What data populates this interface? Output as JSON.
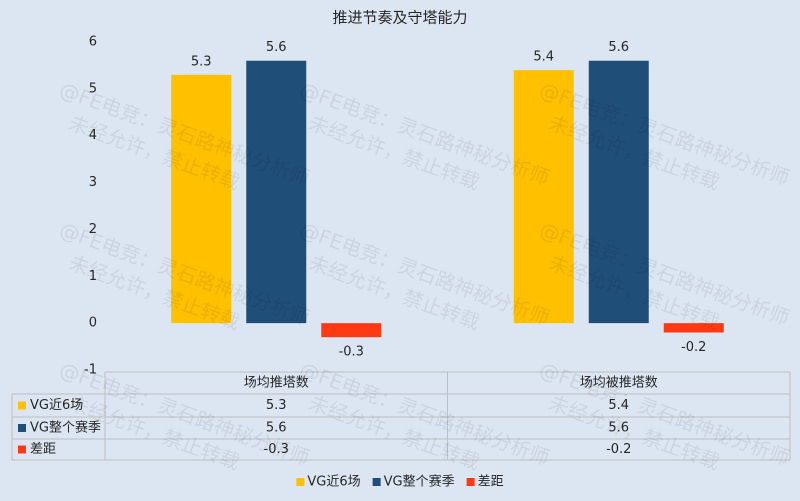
{
  "chart_data": {
    "type": "bar",
    "title": "推进节奏及守塔能力",
    "categories": [
      "场均推塔数",
      "场均被推塔数"
    ],
    "series": [
      {
        "name": "VG近6场",
        "color": "#ffc000",
        "values": [
          5.3,
          5.4
        ]
      },
      {
        "name": "VG整个赛季",
        "color": "#1f4e79",
        "values": [
          5.6,
          5.6
        ]
      },
      {
        "name": "差距",
        "color": "#ff3a12",
        "values": [
          -0.3,
          -0.2
        ]
      }
    ],
    "ylim": [
      -1,
      6
    ],
    "yticks": [
      -1,
      0,
      1,
      2,
      3,
      4,
      5,
      6
    ],
    "grid": false,
    "legend": "bottom",
    "data_table": true
  },
  "watermark": [
    "@FE电竞：灵石路神秘分析师",
    "未经允许，禁止转载"
  ]
}
